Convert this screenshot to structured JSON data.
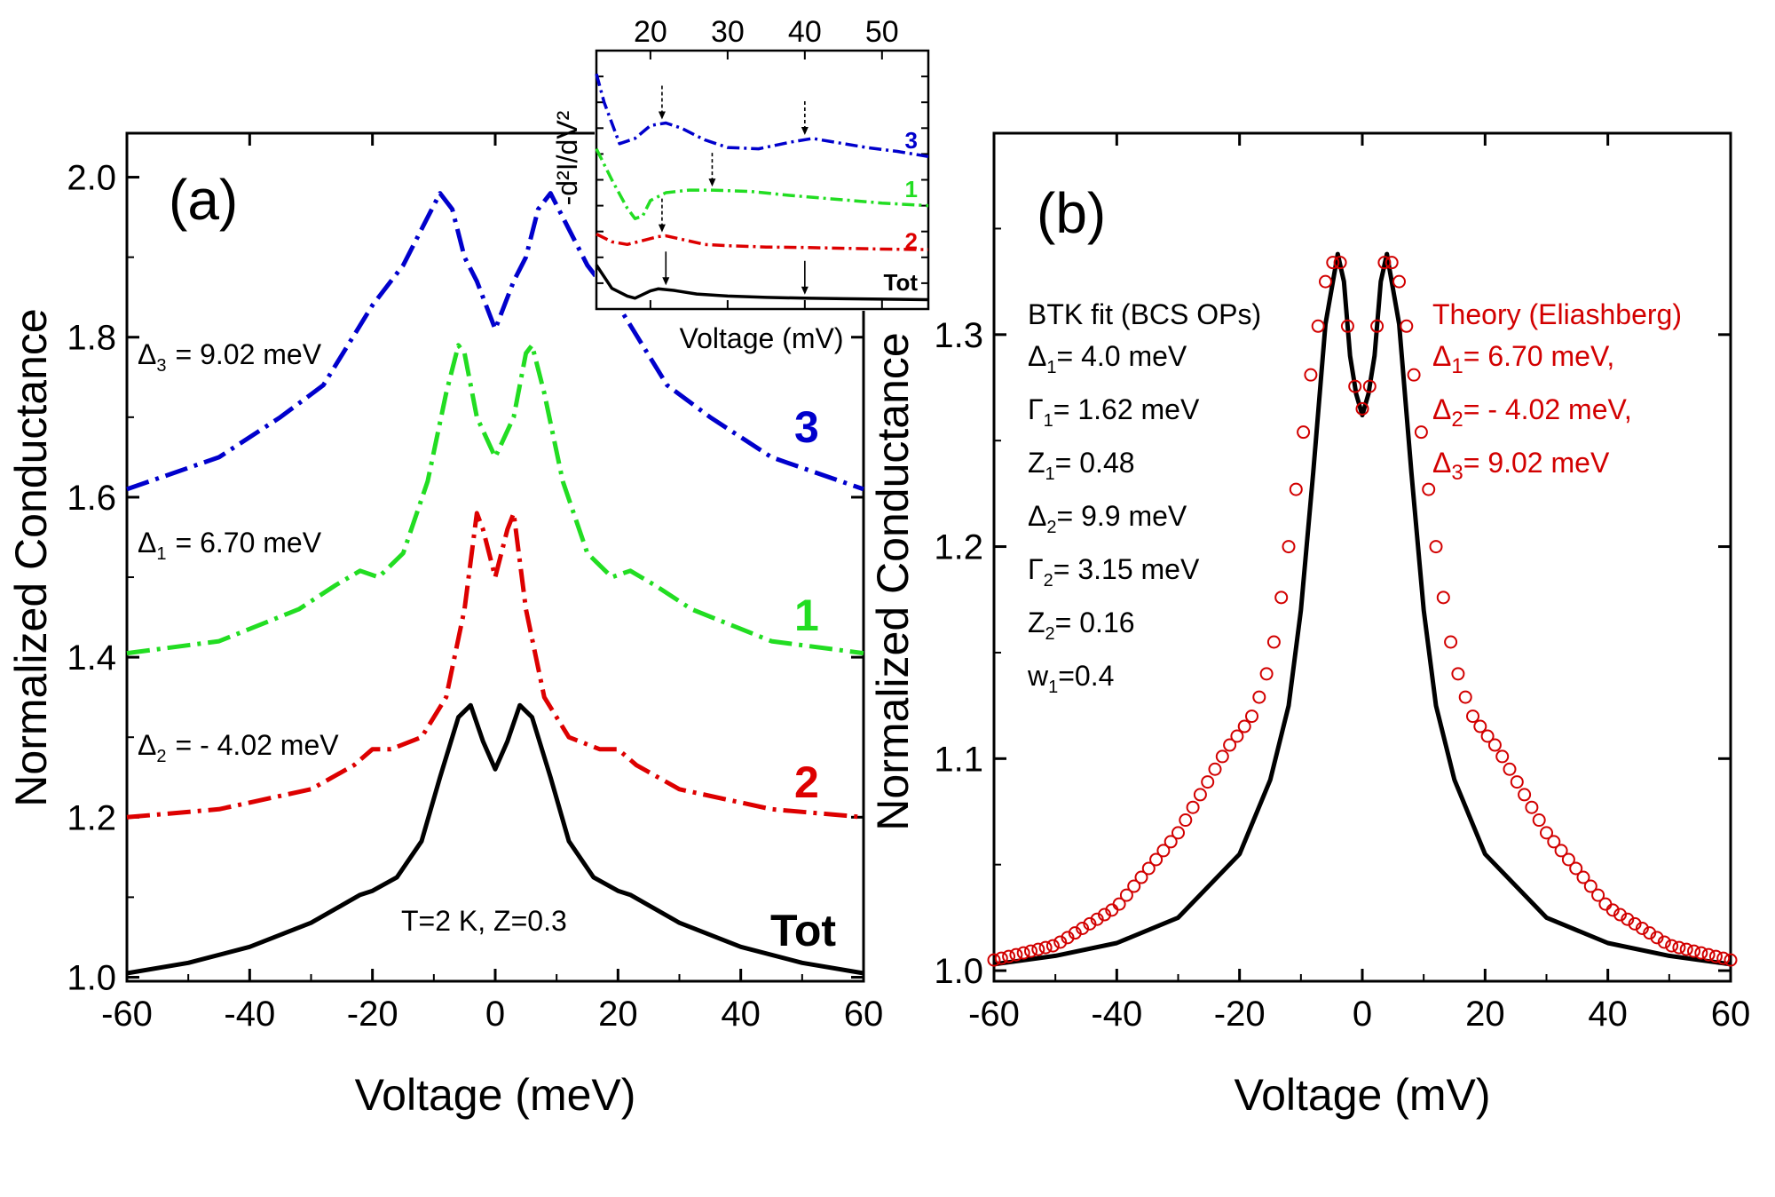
{
  "colors": {
    "blue": "#0000cc",
    "green": "#22dd22",
    "red": "#dd0000",
    "black": "#000000",
    "theory": "#d20000"
  },
  "chart_data": [
    {
      "id": "a",
      "type": "line",
      "panel_label": "(a)",
      "xlabel": "Voltage  (meV)",
      "ylabel": "Normalized Conductance",
      "xlim": [
        -60,
        60
      ],
      "ylim": [
        0.995,
        2.055
      ],
      "xticks": [
        "-60",
        "-40",
        "-20",
        "0",
        "20",
        "40",
        "60"
      ],
      "yticks": [
        "1.0",
        "1.2",
        "1.4",
        "1.6",
        "1.8",
        "2.0"
      ],
      "annotation_temp": "T=2 K, Z=0.3",
      "series": [
        {
          "name": "Tot",
          "label": "Tot",
          "style": "solid",
          "color_key": "black",
          "x": [
            -60,
            -50,
            -40,
            -30,
            -22,
            -20,
            -16,
            -12,
            -9,
            -6,
            -4,
            -2,
            0,
            2,
            4,
            6,
            9,
            12,
            16,
            20,
            22,
            30,
            40,
            50,
            60
          ],
          "y": [
            1.005,
            1.018,
            1.038,
            1.068,
            1.103,
            1.108,
            1.125,
            1.17,
            1.25,
            1.325,
            1.34,
            1.295,
            1.26,
            1.295,
            1.34,
            1.325,
            1.25,
            1.17,
            1.125,
            1.108,
            1.103,
            1.068,
            1.038,
            1.018,
            1.005
          ]
        },
        {
          "name": "2",
          "label": "2",
          "gap_text": "Δ₂ = - 4.02 meV",
          "gap_symbol": "Δ",
          "gap_sub": "2",
          "gap_value": "= - 4.02 meV",
          "style": "dashdot",
          "color_key": "red",
          "x": [
            -60,
            -45,
            -30,
            -23,
            -20,
            -17,
            -12,
            -8,
            -5,
            -3,
            -2,
            0,
            2,
            3,
            5,
            8,
            12,
            17,
            20,
            23,
            30,
            45,
            60
          ],
          "y": [
            1.2,
            1.21,
            1.235,
            1.265,
            1.285,
            1.285,
            1.3,
            1.35,
            1.46,
            1.58,
            1.56,
            1.5,
            1.56,
            1.58,
            1.46,
            1.35,
            1.3,
            1.285,
            1.285,
            1.265,
            1.235,
            1.21,
            1.2
          ]
        },
        {
          "name": "1",
          "label": "1",
          "gap_text": "Δ₁ = 6.70 meV",
          "gap_symbol": "Δ",
          "gap_sub": "1",
          "gap_value": "= 6.70 meV",
          "style": "dashdot",
          "color_key": "green",
          "x": [
            -60,
            -45,
            -32,
            -26,
            -22,
            -19,
            -15,
            -11,
            -8,
            -6,
            -5,
            -3,
            0,
            3,
            5,
            6,
            8,
            11,
            15,
            19,
            22,
            26,
            32,
            45,
            60
          ],
          "y": [
            1.405,
            1.42,
            1.46,
            1.49,
            1.508,
            1.5,
            1.53,
            1.62,
            1.73,
            1.79,
            1.78,
            1.7,
            1.65,
            1.7,
            1.78,
            1.79,
            1.73,
            1.62,
            1.53,
            1.5,
            1.508,
            1.49,
            1.46,
            1.42,
            1.405
          ]
        },
        {
          "name": "3",
          "label": "3",
          "gap_text": "Δ₃ = 9.02 meV",
          "gap_symbol": "Δ",
          "gap_sub": "3",
          "gap_value": "= 9.02 meV",
          "style": "dashdot",
          "color_key": "blue",
          "x": [
            -60,
            -45,
            -35,
            -28,
            -20,
            -15,
            -11,
            -9,
            -7,
            -5,
            -3,
            0,
            3,
            5,
            7,
            9,
            11,
            15,
            20,
            28,
            35,
            45,
            60
          ],
          "y": [
            1.61,
            1.65,
            1.7,
            1.74,
            1.84,
            1.89,
            1.95,
            1.98,
            1.96,
            1.9,
            1.87,
            1.81,
            1.87,
            1.9,
            1.96,
            1.98,
            1.95,
            1.89,
            1.84,
            1.74,
            1.7,
            1.65,
            1.61
          ]
        }
      ],
      "inset": {
        "xlabel": "Voltage (mV)",
        "ylabel": "-d²I/dV²",
        "xlim": [
          13,
          56
        ],
        "xticks": [
          "20",
          "30",
          "40",
          "50"
        ],
        "series": [
          {
            "name": "3",
            "label": "3",
            "color_key": "blue",
            "style": "dashdot",
            "x": [
              13,
              14,
              16,
              18,
              20,
              22,
              24,
              27,
              30,
              34,
              38,
              41,
              44,
              48,
              52,
              56
            ],
            "y": [
              0.91,
              0.8,
              0.64,
              0.66,
              0.71,
              0.72,
              0.7,
              0.655,
              0.625,
              0.62,
              0.645,
              0.66,
              0.645,
              0.625,
              0.61,
              0.59
            ]
          },
          {
            "name": "1",
            "label": "1",
            "color_key": "green",
            "style": "dashdot",
            "x": [
              13,
              15,
              17,
              18,
              19,
              20,
              22,
              25,
              28,
              33,
              38,
              42,
              46,
              50,
              56
            ],
            "y": [
              0.62,
              0.5,
              0.39,
              0.35,
              0.36,
              0.42,
              0.45,
              0.46,
              0.46,
              0.455,
              0.44,
              0.43,
              0.42,
              0.41,
              0.4
            ]
          },
          {
            "name": "2",
            "label": "2",
            "color_key": "red",
            "style": "dashdot",
            "x": [
              13,
              15,
              17,
              19,
              21,
              22,
              24,
              27,
              30,
              35,
              40,
              45,
              50,
              56
            ],
            "y": [
              0.29,
              0.26,
              0.25,
              0.265,
              0.28,
              0.283,
              0.27,
              0.25,
              0.245,
              0.24,
              0.238,
              0.235,
              0.232,
              0.23
            ],
            "label_y": 0.26
          },
          {
            "name": "Tot",
            "label": "Tot",
            "color_key": "black",
            "style": "solid",
            "x": [
              13,
              15,
              17,
              18,
              20,
              21,
              23,
              26,
              30,
              35,
              40,
              45,
              50,
              56
            ],
            "y": [
              0.17,
              0.08,
              0.05,
              0.042,
              0.07,
              0.078,
              0.072,
              0.058,
              0.05,
              0.045,
              0.042,
              0.04,
              0.038,
              0.036
            ],
            "label_y": 0.1
          }
        ],
        "arrows": [
          {
            "x": 21.5,
            "y_data": 0.72,
            "dashed": true
          },
          {
            "x": 40.0,
            "y_data": 0.66,
            "dashed": true
          },
          {
            "x": 28.0,
            "y_data": 0.46,
            "dashed": true
          },
          {
            "x": 21.5,
            "y_data": 0.283,
            "dashed": true
          },
          {
            "x": 22.0,
            "y_data": 0.078,
            "dashed": false
          },
          {
            "x": 40.0,
            "y_data": 0.042,
            "dashed": false
          }
        ]
      }
    },
    {
      "id": "b",
      "type": "line",
      "panel_label": "(b)",
      "xlabel": "Voltage (mV)",
      "ylabel": "Normalized Conductance",
      "xlim": [
        -60,
        60
      ],
      "ylim": [
        0.995,
        1.395
      ],
      "xticks": [
        "-60",
        "-40",
        "-20",
        "0",
        "20",
        "40",
        "60"
      ],
      "yticks": [
        "1.0",
        "1.1",
        "1.2",
        "1.3"
      ],
      "fit_title": "BTK fit (BCS OPs)",
      "fit_params": [
        {
          "sym": "Δ",
          "sub": "1",
          "val": "= 4.0 meV"
        },
        {
          "sym": "Γ",
          "sub": "1",
          "val": "= 1.62 meV"
        },
        {
          "sym": "Z",
          "sub": "1",
          "val": "= 0.48"
        },
        {
          "sym": "Δ",
          "sub": "2",
          "val": "= 9.9 meV"
        },
        {
          "sym": "Γ",
          "sub": "2",
          "val": "= 3.15 meV"
        },
        {
          "sym": "Z",
          "sub": "2",
          "val": "= 0.16"
        },
        {
          "sym": "w",
          "sub": "1",
          "val": "=0.4"
        }
      ],
      "theory_title": "Theory (Eliashberg)",
      "theory_params": [
        {
          "sym": "Δ",
          "sub": "1",
          "val": "=   6.70 meV,"
        },
        {
          "sym": "Δ",
          "sub": "2",
          "val": "= - 4.02 meV,"
        },
        {
          "sym": "Δ",
          "sub": "3",
          "val": "=   9.02 meV"
        }
      ],
      "series": [
        {
          "name": "BTK fit",
          "style": "solid",
          "color_key": "black",
          "x": [
            -60,
            -50,
            -40,
            -30,
            -20,
            -15,
            -12,
            -10,
            -8,
            -6,
            -4,
            -3,
            -2,
            -1,
            0,
            1,
            2,
            3,
            4,
            6,
            8,
            10,
            12,
            15,
            20,
            30,
            40,
            50,
            60
          ],
          "y": [
            1.003,
            1.007,
            1.013,
            1.025,
            1.055,
            1.09,
            1.125,
            1.17,
            1.235,
            1.305,
            1.338,
            1.325,
            1.29,
            1.272,
            1.262,
            1.272,
            1.29,
            1.325,
            1.338,
            1.305,
            1.235,
            1.17,
            1.125,
            1.09,
            1.055,
            1.025,
            1.013,
            1.007,
            1.003
          ]
        },
        {
          "name": "Theory (Eliashberg)",
          "style": "circles",
          "color_key": "theory",
          "x": [
            -60,
            -50,
            -40,
            -30,
            -25,
            -22,
            -20,
            -18,
            -16,
            -14,
            -12,
            -10,
            -8,
            -6,
            -4,
            -3,
            -2,
            -1,
            0,
            1,
            2,
            3,
            4,
            6,
            8,
            10,
            12,
            14,
            16,
            18,
            20,
            22,
            25,
            30,
            40,
            50,
            60
          ],
          "y": [
            1.005,
            1.012,
            1.03,
            1.065,
            1.09,
            1.105,
            1.112,
            1.12,
            1.135,
            1.16,
            1.2,
            1.245,
            1.29,
            1.325,
            1.34,
            1.325,
            1.29,
            1.272,
            1.265,
            1.272,
            1.29,
            1.325,
            1.34,
            1.325,
            1.29,
            1.245,
            1.2,
            1.16,
            1.135,
            1.12,
            1.112,
            1.105,
            1.09,
            1.065,
            1.03,
            1.012,
            1.005
          ]
        }
      ]
    }
  ]
}
